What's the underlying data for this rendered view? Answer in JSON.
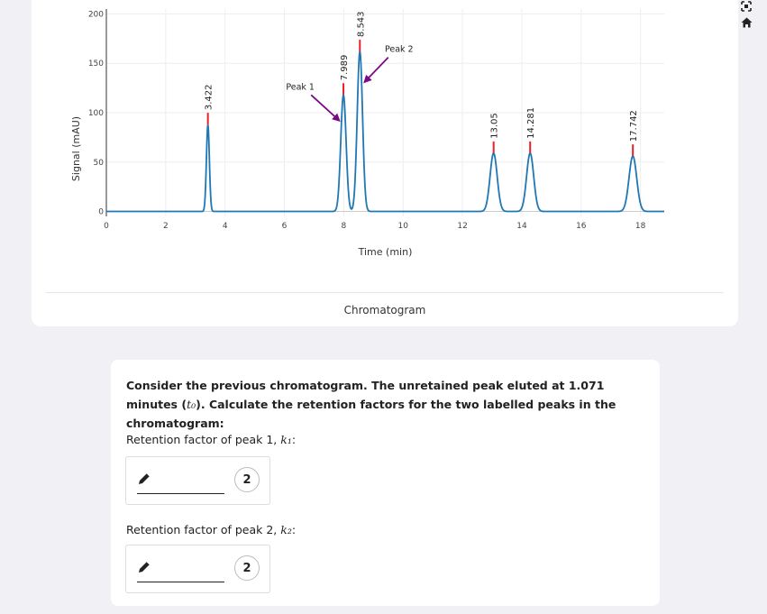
{
  "toolbar": {
    "icons": [
      "autoscale-icon",
      "home-icon"
    ]
  },
  "chart_data": {
    "type": "line",
    "xlabel": "Time (min)",
    "ylabel": "Signal (mAU)",
    "caption": "Chromatogram",
    "xlim": [
      0,
      18.8
    ],
    "ylim": [
      -5,
      205
    ],
    "xticks": [
      0,
      2,
      4,
      6,
      8,
      10,
      12,
      14,
      16,
      18
    ],
    "yticks": [
      0,
      50,
      100,
      150,
      200
    ],
    "grid": true,
    "line_color": "#1f77b4",
    "marker_color": "#e8202a",
    "annotation_color": "#7b0a84",
    "peaks": [
      {
        "rt": 3.422,
        "label": "3.422",
        "height": 88,
        "width": 0.05
      },
      {
        "rt": 7.989,
        "label": "7.989",
        "height": 118,
        "width": 0.09
      },
      {
        "rt": 8.543,
        "label": "8.543",
        "height": 162,
        "width": 0.09
      },
      {
        "rt": 13.05,
        "label": "13.05",
        "height": 59,
        "width": 0.12
      },
      {
        "rt": 14.281,
        "label": "14.281",
        "height": 59,
        "width": 0.12
      },
      {
        "rt": 17.742,
        "label": "17.742",
        "height": 56,
        "width": 0.13
      }
    ],
    "annotations": [
      {
        "text": "Peak 1",
        "tail": [
          6.9,
          118
        ],
        "head": [
          7.85,
          92
        ]
      },
      {
        "text": "Peak 2",
        "tail": [
          9.5,
          156
        ],
        "head": [
          8.7,
          131
        ]
      }
    ]
  },
  "question": {
    "text_before": "Consider the previous chromatogram. The unretained peak eluted at 1.071 minutes (",
    "t0": "t₀",
    "text_after": "). Calculate the retention factors for the two labelled peaks in the chromatogram:",
    "fields": [
      {
        "label": "Retention factor of peak 1, ",
        "symbol": "k₁",
        "suffix": ":",
        "value": "",
        "badge": "2"
      },
      {
        "label": "Retention factor of peak 2, ",
        "symbol": "k₂",
        "suffix": ":",
        "value": "",
        "badge": "2"
      }
    ]
  }
}
